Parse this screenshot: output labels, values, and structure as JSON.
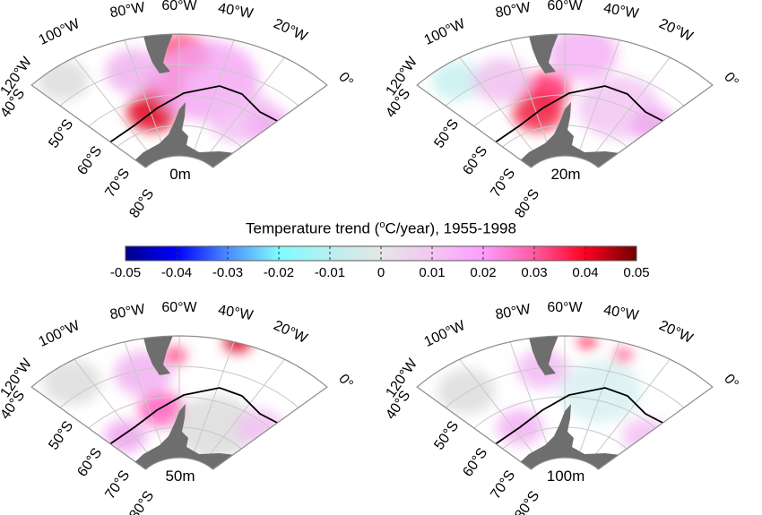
{
  "figure": {
    "panels": [
      {
        "depth_label": "0m"
      },
      {
        "depth_label": "20m"
      },
      {
        "depth_label": "50m"
      },
      {
        "depth_label": "100m"
      }
    ],
    "longitude_labels": [
      "120°W",
      "100°W",
      "80°W",
      "60°W",
      "40°W",
      "20°W",
      "0°"
    ],
    "latitude_labels": [
      "40°S",
      "50°S",
      "60°S",
      "70°S",
      "80°S"
    ],
    "colorbar": {
      "title_prefix": "Temperature trend (",
      "title_sup": "o",
      "title_suffix": "C/year), 1955-1998",
      "ticks": [
        "-0.05",
        "-0.04",
        "-0.03",
        "-0.02",
        "-0.01",
        "0",
        "0.01",
        "0.02",
        "0.03",
        "0.04",
        "0.05"
      ],
      "range": [
        -0.05,
        0.05
      ],
      "colors": [
        "#00008c",
        "#0000ff",
        "#4a8cff",
        "#7ffbff",
        "#b8f0f0",
        "#e6e6e6",
        "#f3c6f3",
        "#ff9cff",
        "#ff5aa0",
        "#ff0020",
        "#6e0000"
      ]
    },
    "land_color": "#6e6e6e",
    "front_color": "#000000"
  }
}
